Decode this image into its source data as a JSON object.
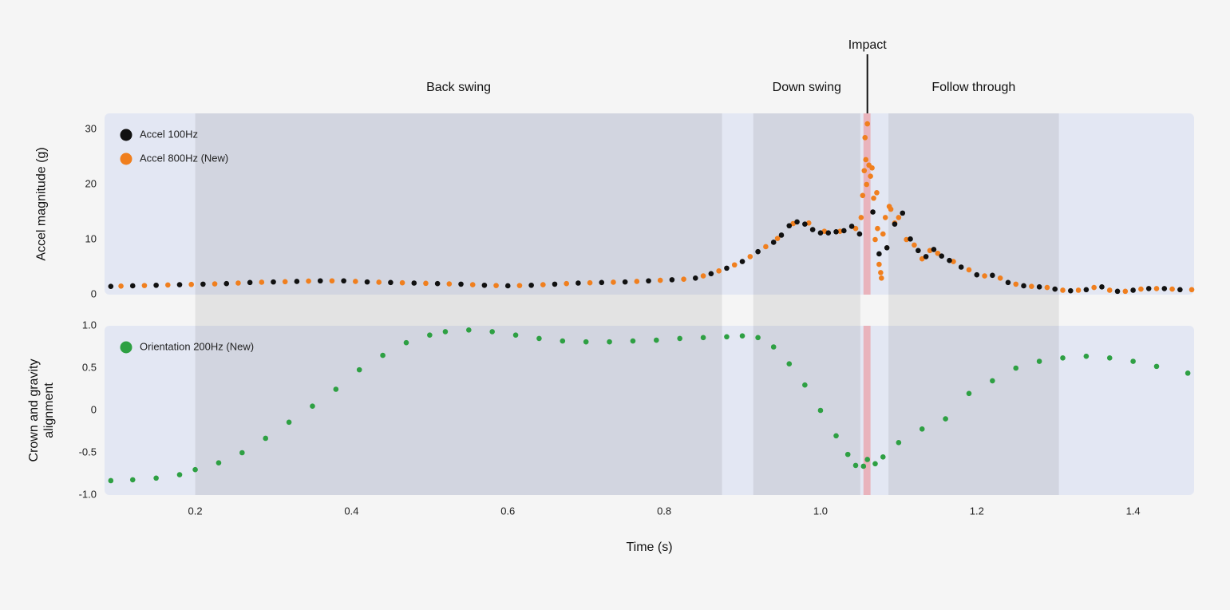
{
  "chart_data": [
    {
      "type": "scatter",
      "ylabel": "Accel magnitude (g)",
      "xlim": [
        0.084,
        1.478
      ],
      "ylim": [
        0,
        32.9
      ],
      "yticks": [
        0,
        10,
        20,
        30
      ],
      "phases": [
        {
          "label": "Back swing",
          "start": 0.2,
          "end": 0.874
        },
        {
          "label": "Down swing",
          "start": 0.914,
          "end": 1.051
        },
        {
          "label": "Follow through",
          "start": 1.087,
          "end": 1.305
        }
      ],
      "impact": {
        "label": "Impact",
        "x": 1.06,
        "start": 1.055,
        "end": 1.064
      },
      "series": [
        {
          "name": "Accel 800Hz (New)",
          "color": "#f07f1e",
          "x": [
            0.105,
            0.135,
            0.165,
            0.195,
            0.225,
            0.255,
            0.285,
            0.315,
            0.345,
            0.375,
            0.405,
            0.435,
            0.465,
            0.495,
            0.525,
            0.555,
            0.585,
            0.615,
            0.645,
            0.675,
            0.705,
            0.735,
            0.765,
            0.795,
            0.825,
            0.85,
            0.87,
            0.89,
            0.91,
            0.93,
            0.945,
            0.965,
            0.985,
            1.005,
            1.025,
            1.045,
            1.052,
            1.054,
            1.056,
            1.057,
            1.058,
            1.059,
            1.06,
            1.062,
            1.064,
            1.066,
            1.068,
            1.07,
            1.072,
            1.073,
            1.075,
            1.077,
            1.078,
            1.08,
            1.083,
            1.088,
            1.09,
            1.095,
            1.1,
            1.11,
            1.12,
            1.13,
            1.14,
            1.15,
            1.17,
            1.19,
            1.21,
            1.23,
            1.25,
            1.27,
            1.29,
            1.31,
            1.33,
            1.35,
            1.37,
            1.39,
            1.41,
            1.43,
            1.45,
            1.475
          ],
          "values": [
            1.55,
            1.65,
            1.75,
            1.85,
            1.95,
            2.1,
            2.25,
            2.35,
            2.45,
            2.5,
            2.4,
            2.25,
            2.15,
            2.05,
            1.95,
            1.8,
            1.65,
            1.65,
            1.8,
            2.0,
            2.15,
            2.25,
            2.4,
            2.6,
            2.8,
            3.4,
            4.3,
            5.4,
            6.9,
            8.7,
            10.2,
            12.9,
            13.0,
            11.5,
            11.5,
            12.0,
            14.0,
            18.0,
            22.5,
            28.5,
            24.5,
            20.0,
            31.0,
            23.5,
            21.5,
            23.0,
            17.5,
            10.0,
            18.5,
            12.0,
            5.5,
            4.0,
            3.0,
            11.0,
            14.0,
            16.0,
            15.5,
            13.0,
            14.0,
            10.0,
            9.0,
            6.5,
            8.0,
            7.5,
            6.0,
            4.5,
            3.4,
            3.0,
            1.9,
            1.5,
            1.3,
            0.8,
            0.8,
            1.3,
            0.8,
            0.6,
            1.0,
            1.1,
            1.0,
            0.9
          ]
        },
        {
          "name": "Accel 100Hz",
          "color": "#111111",
          "x": [
            0.092,
            0.12,
            0.15,
            0.18,
            0.21,
            0.24,
            0.27,
            0.3,
            0.33,
            0.36,
            0.39,
            0.42,
            0.45,
            0.48,
            0.51,
            0.54,
            0.57,
            0.6,
            0.63,
            0.66,
            0.69,
            0.72,
            0.75,
            0.78,
            0.81,
            0.84,
            0.86,
            0.88,
            0.9,
            0.92,
            0.94,
            0.95,
            0.96,
            0.97,
            0.98,
            0.99,
            1.0,
            1.01,
            1.02,
            1.03,
            1.04,
            1.05,
            1.067,
            1.075,
            1.085,
            1.095,
            1.105,
            1.115,
            1.125,
            1.135,
            1.145,
            1.155,
            1.165,
            1.18,
            1.2,
            1.22,
            1.24,
            1.26,
            1.28,
            1.3,
            1.32,
            1.34,
            1.36,
            1.38,
            1.4,
            1.42,
            1.44,
            1.46
          ],
          "values": [
            1.5,
            1.6,
            1.7,
            1.8,
            1.9,
            2.0,
            2.2,
            2.3,
            2.4,
            2.5,
            2.5,
            2.3,
            2.2,
            2.1,
            2.0,
            1.9,
            1.7,
            1.6,
            1.7,
            1.9,
            2.1,
            2.2,
            2.3,
            2.5,
            2.7,
            3.0,
            3.8,
            4.8,
            6.0,
            7.8,
            9.5,
            10.8,
            12.5,
            13.2,
            12.8,
            11.8,
            11.2,
            11.2,
            11.4,
            11.6,
            12.4,
            11.0,
            15.0,
            7.4,
            8.5,
            12.8,
            14.8,
            10.1,
            8.0,
            6.9,
            8.2,
            7.0,
            6.2,
            5.0,
            3.6,
            3.5,
            2.2,
            1.6,
            1.4,
            1.0,
            0.7,
            0.9,
            1.4,
            0.6,
            0.8,
            1.1,
            1.1,
            0.9
          ]
        }
      ],
      "legend_order": [
        1,
        0
      ]
    },
    {
      "type": "scatter",
      "ylabel": "Crown and gravity alignment",
      "xlabel": "Time (s)",
      "xlim": [
        0.084,
        1.478
      ],
      "ylim": [
        -1,
        1
      ],
      "yticks": [
        {
          "value": -1,
          "label": "-1.0"
        },
        -0.5,
        0,
        0.5,
        {
          "value": 1,
          "label": "1.0"
        }
      ],
      "xticks": [
        0.2,
        0.4,
        0.6,
        0.8,
        {
          "value": 1,
          "label": "1.0"
        },
        1.2,
        1.4
      ],
      "series": [
        {
          "name": "Orientation 200Hz (New)",
          "color": "#2ea043",
          "x": [
            0.092,
            0.12,
            0.15,
            0.18,
            0.2,
            0.23,
            0.26,
            0.29,
            0.32,
            0.35,
            0.38,
            0.41,
            0.44,
            0.47,
            0.5,
            0.52,
            0.55,
            0.58,
            0.61,
            0.64,
            0.67,
            0.7,
            0.73,
            0.76,
            0.79,
            0.82,
            0.85,
            0.88,
            0.9,
            0.92,
            0.94,
            0.96,
            0.98,
            1.0,
            1.02,
            1.035,
            1.045,
            1.055,
            1.06,
            1.07,
            1.08,
            1.1,
            1.13,
            1.16,
            1.19,
            1.22,
            1.25,
            1.28,
            1.31,
            1.34,
            1.37,
            1.4,
            1.43,
            1.47
          ],
          "values": [
            -0.83,
            -0.82,
            -0.8,
            -0.76,
            -0.7,
            -0.62,
            -0.5,
            -0.33,
            -0.14,
            0.05,
            0.25,
            0.48,
            0.65,
            0.8,
            0.89,
            0.93,
            0.95,
            0.93,
            0.89,
            0.85,
            0.82,
            0.81,
            0.81,
            0.82,
            0.83,
            0.85,
            0.86,
            0.87,
            0.88,
            0.86,
            0.75,
            0.55,
            0.3,
            0.0,
            -0.3,
            -0.52,
            -0.65,
            -0.66,
            -0.58,
            -0.63,
            -0.55,
            -0.38,
            -0.22,
            -0.1,
            0.2,
            0.35,
            0.5,
            0.58,
            0.62,
            0.64,
            0.62,
            0.58,
            0.52,
            0.44
          ]
        }
      ],
      "legend_order": [
        0
      ]
    }
  ]
}
